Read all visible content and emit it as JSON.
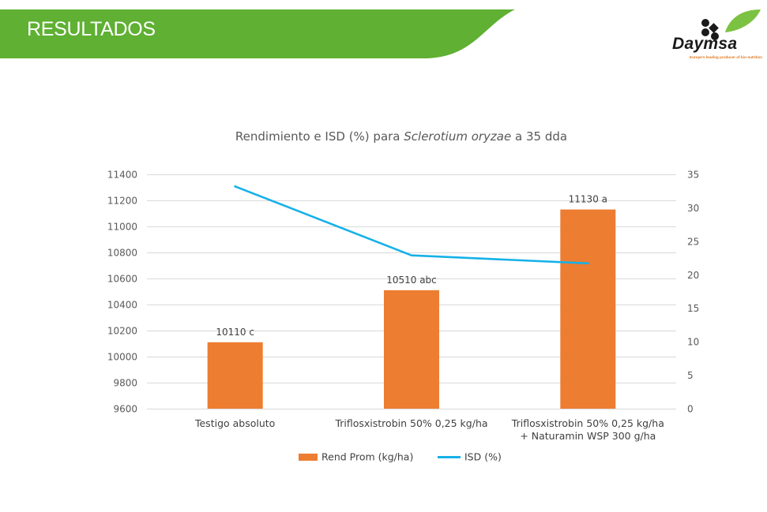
{
  "header": {
    "title": "RESULTADOS",
    "banner_color": "#5fb033"
  },
  "logo": {
    "name": "Daymsa",
    "tagline": "Europe's leading producer of bio-nutrition"
  },
  "chart_data": {
    "type": "bar",
    "title_parts": [
      "Rendimiento e ISD (%) para ",
      "Sclerotium oryzae",
      " a 35 dda"
    ],
    "categories": [
      [
        "Testigo absoluto"
      ],
      [
        "Triflosxistrobin 50% 0,25 kg/ha"
      ],
      [
        "Triflosxistrobin 50% 0,25 kg/ha",
        "+ Naturamin WSP 300 g/ha"
      ]
    ],
    "series": [
      {
        "name": "Rend Prom (kg/ha)",
        "type": "bar",
        "axis": "left",
        "color": "#ed7d31",
        "values": [
          10110,
          10510,
          11130
        ],
        "labels": [
          "10110 c",
          "10510 abc",
          "11130 a"
        ]
      },
      {
        "name": "ISD (%)",
        "type": "line",
        "axis": "right",
        "color": "#16b1e7",
        "values": [
          33.2,
          22.9,
          21.7
        ]
      }
    ],
    "y_left": {
      "min": 9600,
      "max": 11400,
      "ticks": [
        9600,
        9800,
        10000,
        10200,
        10400,
        10600,
        10800,
        11000,
        11200,
        11400
      ]
    },
    "y_right": {
      "min": 0,
      "max": 35,
      "ticks": [
        0,
        5,
        10,
        15,
        20,
        25,
        30,
        35
      ]
    },
    "grid": true,
    "legend": "bottom"
  }
}
